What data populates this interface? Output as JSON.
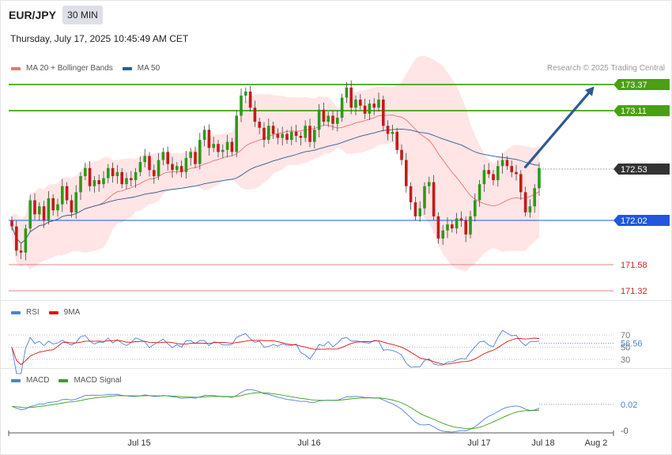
{
  "header": {
    "symbol": "EUR/JPY",
    "timeframe": "30 MIN",
    "datetime": "Thursday, July 17, 2025 10:45:49 AM CET"
  },
  "legend_main": [
    {
      "label": "MA 20 + Bollinger Bands",
      "color": "#f07070"
    },
    {
      "label": "MA 50",
      "color": "#2e5a94"
    }
  ],
  "credit": "Research © 2025 Trading Central",
  "legend_rsi": [
    {
      "label": "RSI",
      "color": "#4f7fd9"
    },
    {
      "label": "9MA",
      "color": "#e01010"
    }
  ],
  "legend_macd": [
    {
      "label": "MACD",
      "color": "#4f7fd9"
    },
    {
      "label": "MACD Signal",
      "color": "#3aa018"
    }
  ],
  "colors": {
    "resistance": "#4aa010",
    "last": "#333333",
    "support": "#2255e0",
    "target": "#d22020",
    "arrow": "#2e5a94",
    "up": "#2b9a18",
    "down": "#c81818"
  },
  "chart_data": {
    "type": "candlestick",
    "price_levels": [
      {
        "value": 173.37,
        "label": "173.37",
        "kind": "resistance"
      },
      {
        "value": 173.11,
        "label": "173.11",
        "kind": "resistance"
      },
      {
        "value": 172.53,
        "label": "172.53",
        "kind": "last"
      },
      {
        "value": 172.02,
        "label": "172.02",
        "kind": "support"
      },
      {
        "value": 171.58,
        "label": "171.58",
        "kind": "target"
      },
      {
        "value": 171.32,
        "label": "171.32",
        "kind": "target"
      }
    ],
    "x_ticks": [
      "Jul 15",
      "Jul 16",
      "Jul 17",
      "Jul 18",
      "Aug 2"
    ],
    "forecast_arrow": {
      "from": {
        "index": 112,
        "value": 172.55
      },
      "to": {
        "index": 127,
        "value": 173.35
      }
    },
    "candles_close": [
      171.96,
      171.72,
      171.7,
      171.94,
      172.22,
      172.08,
      172.16,
      172.02,
      172.24,
      172.12,
      172.18,
      172.36,
      172.22,
      172.1,
      172.3,
      172.46,
      172.54,
      172.36,
      172.42,
      172.38,
      172.44,
      172.54,
      172.46,
      172.5,
      172.38,
      172.44,
      172.42,
      172.5,
      172.6,
      172.66,
      172.52,
      172.46,
      172.62,
      172.7,
      172.58,
      172.52,
      172.56,
      172.5,
      172.64,
      172.7,
      172.58,
      172.82,
      172.92,
      172.74,
      172.78,
      172.7,
      172.72,
      172.8,
      172.7,
      173.06,
      173.26,
      173.3,
      173.14,
      173.0,
      172.94,
      172.82,
      172.96,
      172.88,
      172.84,
      172.88,
      172.82,
      172.9,
      172.86,
      172.84,
      172.96,
      172.8,
      172.92,
      173.12,
      173.0,
      173.06,
      172.98,
      173.04,
      173.24,
      173.34,
      173.14,
      173.22,
      173.16,
      173.08,
      173.18,
      173.14,
      173.22,
      172.96,
      172.88,
      172.9,
      172.72,
      172.62,
      172.36,
      172.2,
      172.06,
      172.14,
      172.36,
      172.4,
      172.06,
      171.84,
      171.92,
      171.98,
      171.94,
      172.04,
      172.02,
      171.88,
      172.06,
      172.22,
      172.38,
      172.52,
      172.48,
      172.42,
      172.56,
      172.62,
      172.56,
      172.5,
      172.48,
      172.3,
      172.1,
      172.16,
      172.34,
      172.54
    ],
    "rsi": {
      "value": 56.56,
      "label": "56.56",
      "levels": [
        70,
        50,
        30
      ]
    },
    "macd": {
      "value": 0.02,
      "labels": [
        "0.02",
        "-0"
      ]
    }
  }
}
